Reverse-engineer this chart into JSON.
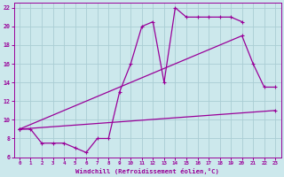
{
  "xlabel": "Windchill (Refroidissement éolien,°C)",
  "line_color": "#990099",
  "bg_color": "#cce8ec",
  "grid_color": "#aacdd4",
  "xlim": [
    -0.5,
    23.5
  ],
  "ylim": [
    6,
    22.5
  ],
  "xticks": [
    0,
    1,
    2,
    3,
    4,
    5,
    6,
    7,
    8,
    9,
    10,
    11,
    12,
    13,
    14,
    15,
    16,
    17,
    18,
    19,
    20,
    21,
    22,
    23
  ],
  "yticks": [
    6,
    8,
    10,
    12,
    14,
    16,
    18,
    20,
    22
  ],
  "series1": {
    "x": [
      0,
      1,
      2,
      3,
      4,
      5,
      6,
      7,
      8,
      9,
      10,
      11,
      12,
      13,
      14,
      15,
      16,
      17,
      18,
      19,
      20
    ],
    "y": [
      9,
      9,
      7.5,
      7.5,
      7.5,
      7,
      6.5,
      8,
      8,
      13,
      16,
      20,
      20.5,
      14,
      22,
      21,
      21,
      21,
      21,
      21,
      20.5
    ]
  },
  "series2": {
    "x": [
      0,
      20,
      21,
      22,
      23
    ],
    "y": [
      9,
      19,
      16,
      13.5,
      13.5
    ]
  },
  "series3": {
    "x": [
      0,
      23
    ],
    "y": [
      9,
      11
    ]
  }
}
